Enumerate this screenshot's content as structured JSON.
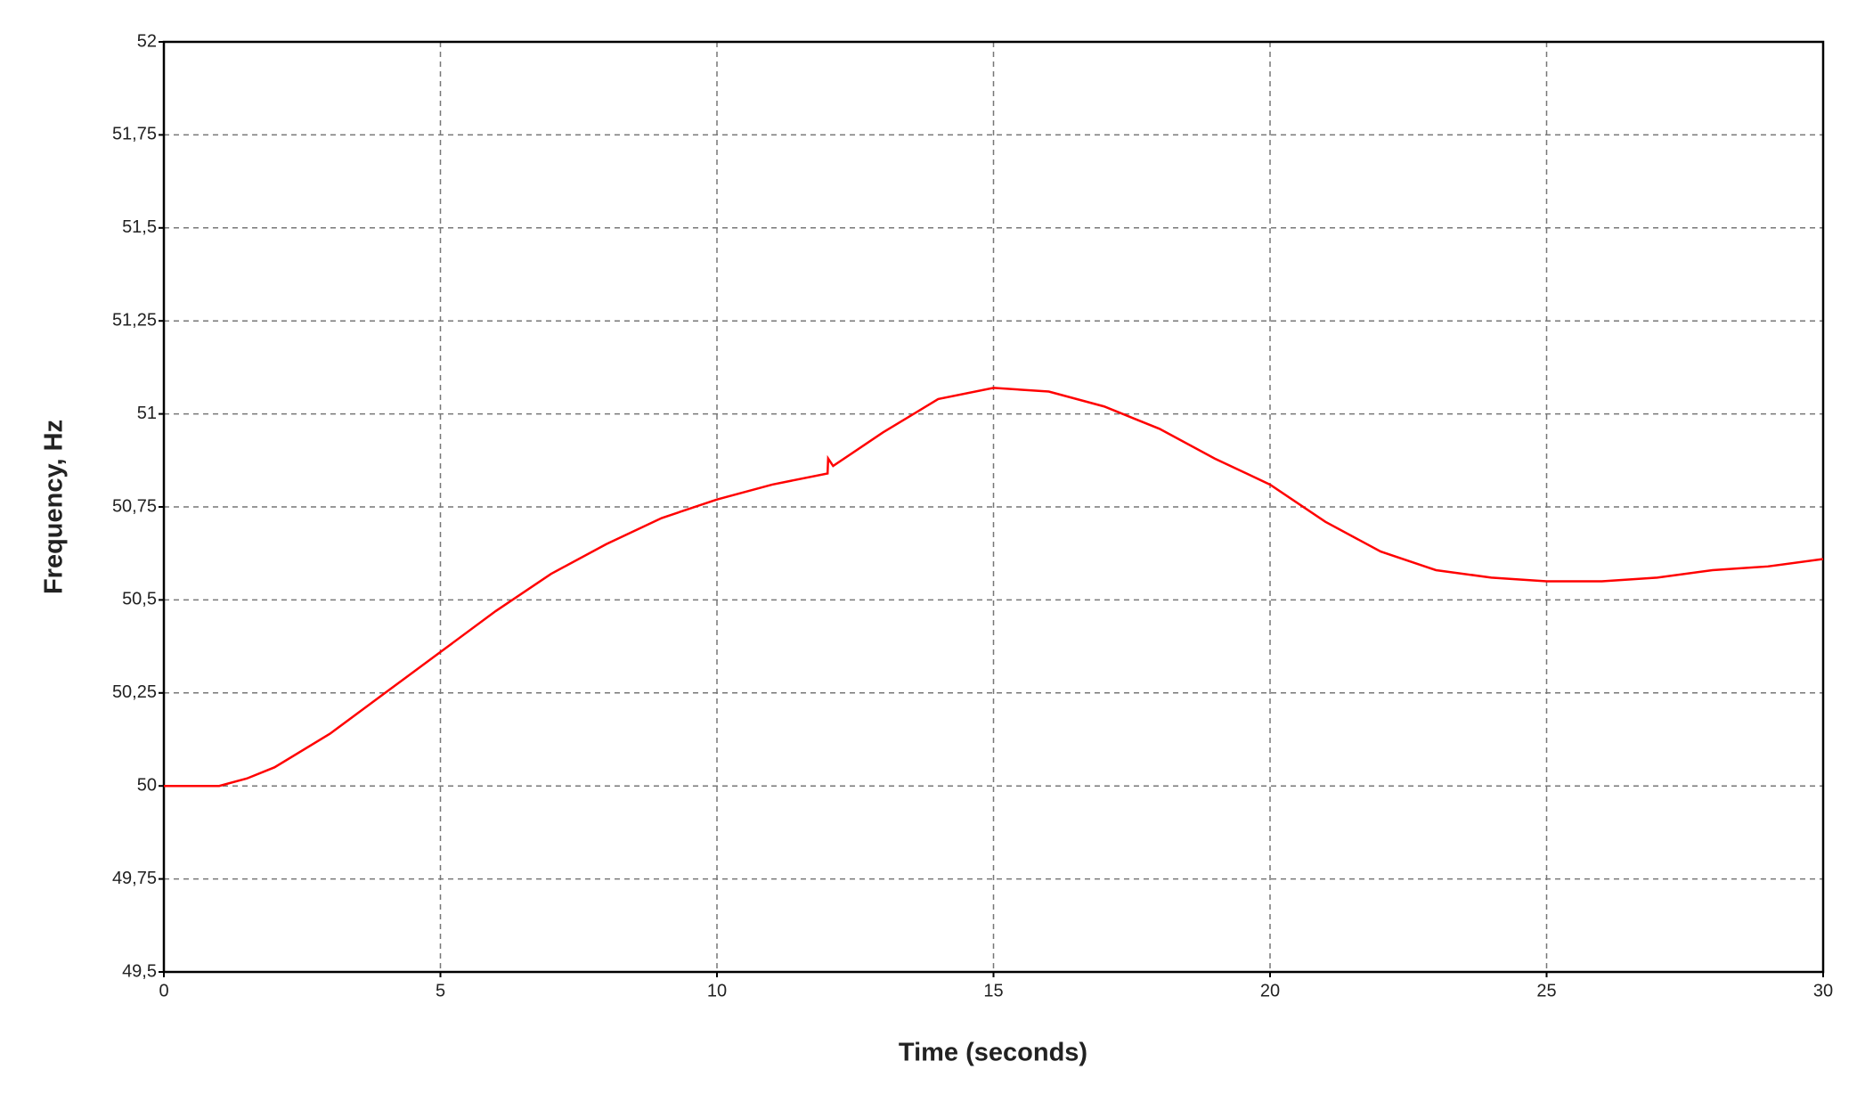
{
  "chart_data": {
    "type": "line",
    "xlabel": "Time (seconds)",
    "ylabel": "Frequency, Hz",
    "x": [
      0,
      0.5,
      1,
      1.5,
      2,
      3,
      4,
      5,
      6,
      7,
      8,
      9,
      10,
      11,
      12,
      12.01,
      12.1,
      13,
      14,
      15,
      16,
      17,
      18,
      19,
      20,
      21,
      22,
      23,
      24,
      25,
      26,
      27,
      28,
      29,
      30
    ],
    "series": [
      {
        "name": "Frequency",
        "color": "#ff0000",
        "values": [
          50,
          50,
          50,
          50.02,
          50.05,
          50.14,
          50.25,
          50.36,
          50.47,
          50.57,
          50.65,
          50.72,
          50.77,
          50.81,
          50.84,
          50.88,
          50.86,
          50.95,
          51.04,
          51.07,
          51.06,
          51.02,
          50.96,
          50.88,
          50.81,
          50.71,
          50.63,
          50.58,
          50.56,
          50.55,
          50.55,
          50.56,
          50.58,
          50.59,
          50.61
        ]
      }
    ],
    "xlim": [
      0,
      30
    ],
    "xticks": [
      0,
      5,
      10,
      15,
      20,
      25,
      30
    ],
    "ylim": [
      49.5,
      52
    ],
    "yticks": [
      {
        "value": 49.5,
        "label": "49,5"
      },
      {
        "value": 49.75,
        "label": "49,75"
      },
      50,
      {
        "value": 50.25,
        "label": "50,25"
      },
      {
        "value": 50.5,
        "label": "50,5"
      },
      {
        "value": 50.75,
        "label": "50,75"
      },
      51,
      {
        "value": 51.25,
        "label": "51,25"
      },
      {
        "value": 51.5,
        "label": "51,5"
      },
      {
        "value": 51.75,
        "label": "51,75"
      },
      52
    ],
    "grid": true
  }
}
